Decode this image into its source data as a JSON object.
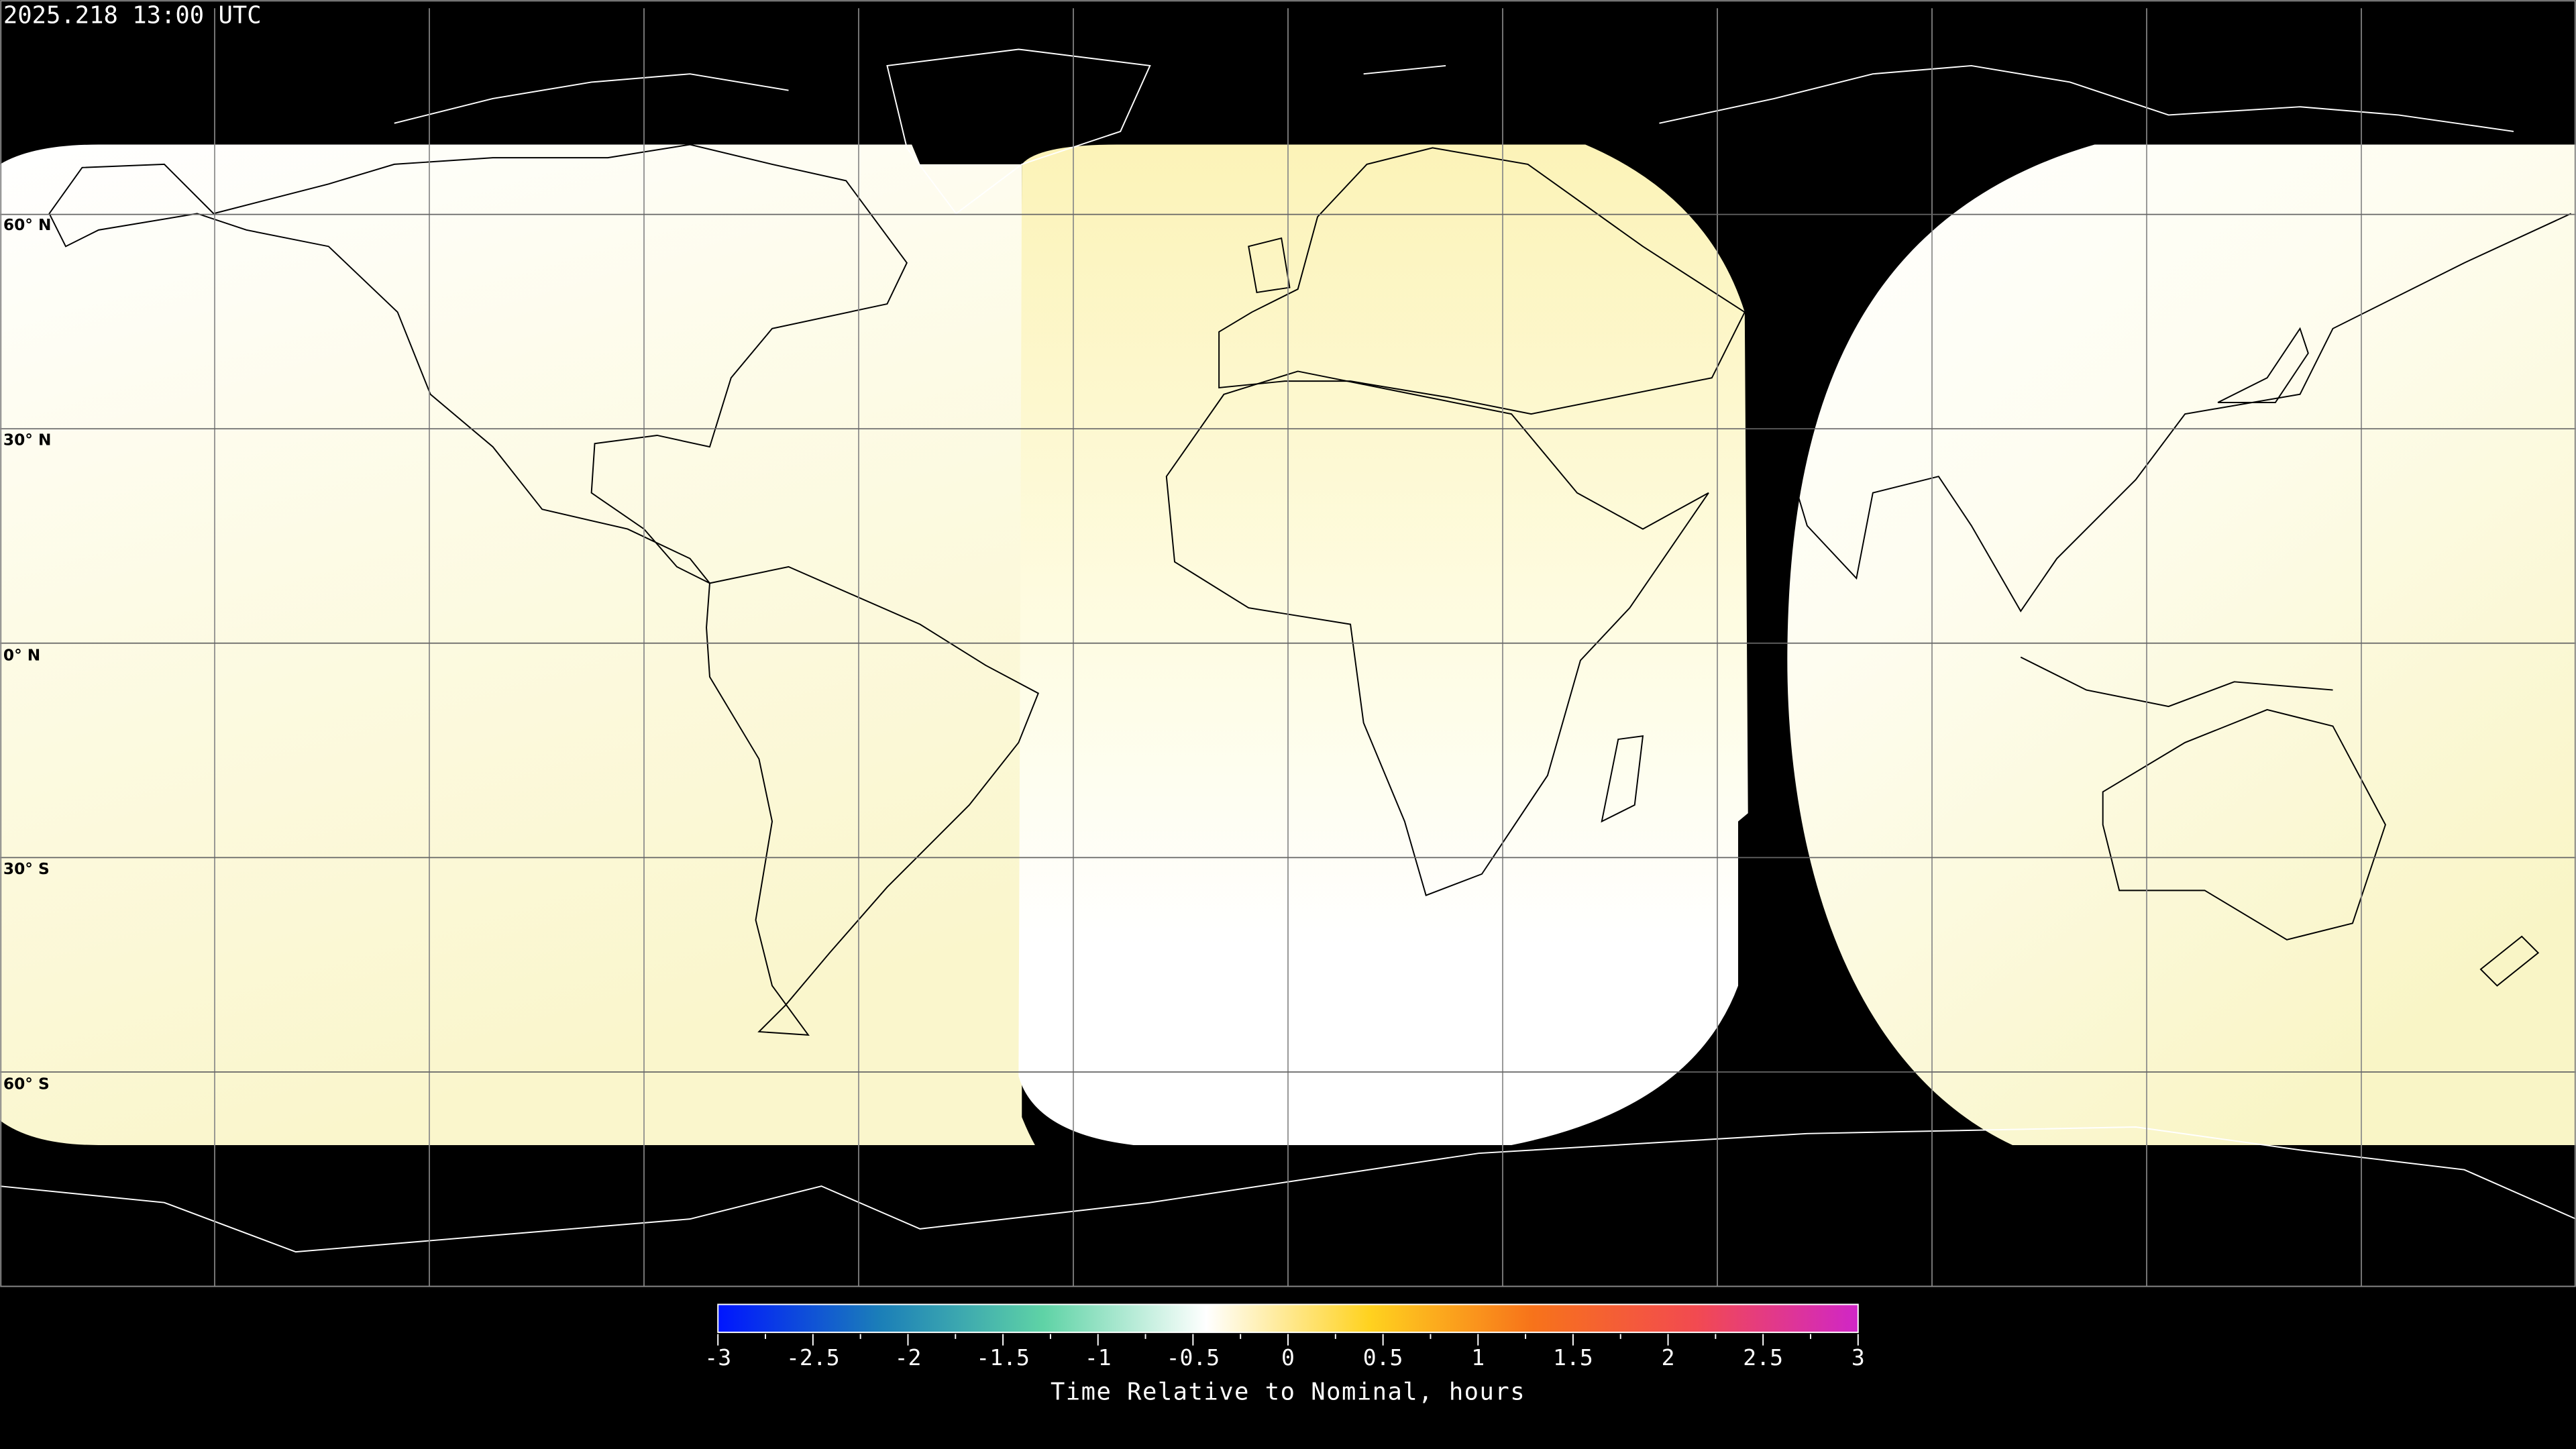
{
  "title": "2025.218 13:00 UTC",
  "map": {
    "projection": "equirectangular",
    "lon_range": [
      -180,
      180
    ],
    "lat_range": [
      -90,
      90
    ],
    "grid_step_degrees": 30,
    "lat_labels": [
      "60° N",
      "30° N",
      "0° N",
      "30° S",
      "60° S"
    ],
    "colors": {
      "background": "#000000",
      "coastline_on_data": "#000000",
      "coastline_on_background": "#ffffff",
      "grid": "#000000",
      "data_light_yellow": "#fbf7cf",
      "data_white": "#ffffff"
    }
  },
  "colorbar": {
    "min": -3,
    "max": 3,
    "tick_labels": [
      "-3",
      "-2.5",
      "-2",
      "-1.5",
      "-1",
      "-0.5",
      "0",
      "0.5",
      "1",
      "1.5",
      "2",
      "2.5",
      "3"
    ],
    "minor_step": 0.25,
    "title": "Time Relative to Nominal, hours",
    "colors": [
      "#0015ff",
      "#1b7fb8",
      "#5fd3a6",
      "#ffffff",
      "#ffd21f",
      "#f7731a",
      "#f24a50",
      "#d026c7"
    ]
  }
}
